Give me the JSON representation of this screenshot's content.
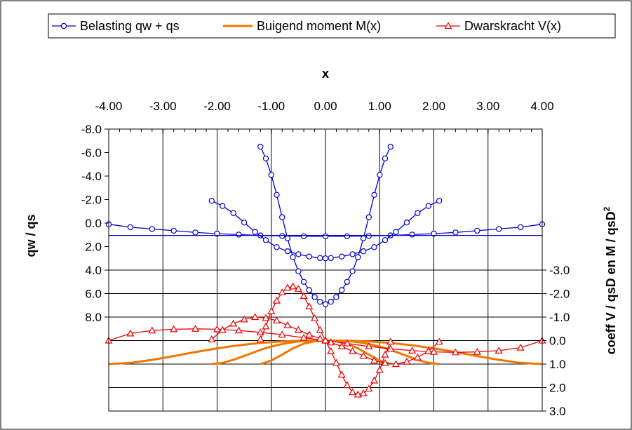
{
  "chart_data": {
    "type": "line",
    "x_axis": {
      "label": "x",
      "position": "top",
      "range": [
        -4,
        4
      ],
      "ticks": [
        "-4.00",
        "-3.00",
        "-2.00",
        "-1.00",
        "0.00",
        "1.00",
        "2.00",
        "3.00",
        "4.00"
      ]
    },
    "y_left": {
      "label": "qw / qs",
      "reversed": true,
      "range": [
        -8,
        8
      ],
      "ticks": [
        "-8.0",
        "-6.0",
        "-4.0",
        "-2.0",
        "0.0",
        "2.0",
        "4.0",
        "6.0",
        "8.0"
      ]
    },
    "y_right": {
      "label": "coeff V / qsD en M /  qsD",
      "label_superscript": "2",
      "range": [
        -3,
        3
      ],
      "ticks": [
        "-3.0",
        "-2.0",
        "-1.0",
        "0.0",
        "1.0",
        "2.0",
        "3.0"
      ]
    },
    "legend": {
      "placement": "top",
      "entries": [
        "Belasting qw + qs",
        "Buigend moment M(x)",
        "Dwarskracht V(x)"
      ]
    },
    "grid": true,
    "colors": {
      "belasting": "#0000cc",
      "moment": "#ee7700",
      "dwarskracht": "#ee0000"
    },
    "series": [
      {
        "key": "belasting",
        "curves": [
          {
            "x": [
              -4.0,
              -3.6,
              -3.2,
              -2.8,
              -2.4,
              -2.0,
              -1.6,
              -1.2,
              -0.8,
              -0.4,
              0.0,
              0.4,
              0.8,
              1.2,
              1.6,
              2.0,
              2.4,
              2.8,
              3.2,
              3.6,
              4.0
            ],
            "y": [
              0.1,
              0.35,
              0.5,
              0.65,
              0.8,
              0.9,
              0.98,
              1.05,
              1.1,
              1.12,
              1.13,
              1.12,
              1.1,
              1.05,
              0.98,
              0.9,
              0.8,
              0.65,
              0.5,
              0.35,
              0.1
            ]
          },
          {
            "x": [
              -2.1,
              -1.9,
              -1.7,
              -1.5,
              -1.3,
              -1.1,
              -0.9,
              -0.7,
              -0.5,
              -0.3,
              -0.1,
              0.0,
              0.1,
              0.3,
              0.5,
              0.7,
              0.9,
              1.1,
              1.3,
              1.5,
              1.7,
              1.9,
              2.1
            ],
            "y": [
              -1.9,
              -1.45,
              -0.85,
              -0.05,
              0.75,
              1.45,
              2.05,
              2.4,
              2.65,
              2.85,
              2.97,
              3.0,
              2.97,
              2.85,
              2.65,
              2.4,
              2.05,
              1.45,
              0.75,
              -0.05,
              -0.85,
              -1.45,
              -1.9
            ]
          },
          {
            "x": [
              -1.2,
              -1.1,
              -1.0,
              -0.9,
              -0.8,
              -0.7,
              -0.6,
              -0.5,
              -0.4,
              -0.3,
              -0.2,
              -0.1,
              0.0,
              0.1,
              0.2,
              0.3,
              0.4,
              0.5,
              0.6,
              0.7,
              0.8,
              0.9,
              1.0,
              1.1,
              1.2
            ],
            "y": [
              -6.5,
              -5.5,
              -4.1,
              -2.4,
              -0.5,
              1.3,
              2.9,
              4.1,
              5.0,
              5.7,
              6.3,
              6.7,
              6.9,
              6.7,
              6.3,
              5.7,
              5.0,
              4.1,
              2.9,
              1.3,
              -0.5,
              -2.4,
              -4.1,
              -5.5,
              -6.5
            ]
          },
          {
            "x": [
              -4.0,
              4.0
            ],
            "y": [
              1.05,
              1.05
            ]
          }
        ]
      },
      {
        "key": "moment",
        "curves": [
          {
            "x": [
              -4.0,
              -3.6,
              -3.2,
              -2.8,
              -2.4,
              -2.0,
              -1.6,
              -1.2,
              -0.8,
              -0.4,
              0.0,
              0.4,
              0.8,
              1.2,
              1.6,
              2.0,
              2.4,
              2.8,
              3.2,
              3.6,
              4.0
            ],
            "y": [
              1.0,
              0.95,
              0.82,
              0.66,
              0.49,
              0.33,
              0.2,
              0.1,
              0.04,
              0.01,
              0.0,
              0.01,
              0.04,
              0.1,
              0.2,
              0.33,
              0.49,
              0.66,
              0.82,
              0.95,
              1.0
            ]
          },
          {
            "x": [
              -2.1,
              -1.9,
              -1.7,
              -1.5,
              -1.3,
              -1.1,
              -0.9,
              -0.7,
              -0.5,
              -0.3,
              -0.1,
              0.0,
              0.1,
              0.3,
              0.5,
              0.7,
              0.9,
              1.1,
              1.3,
              1.5,
              1.7,
              1.9,
              2.1
            ],
            "y": [
              1.0,
              0.95,
              0.82,
              0.65,
              0.48,
              0.32,
              0.2,
              0.1,
              0.04,
              0.01,
              0.0,
              0.0,
              0.0,
              0.01,
              0.04,
              0.1,
              0.2,
              0.32,
              0.48,
              0.65,
              0.82,
              0.95,
              1.0
            ]
          },
          {
            "x": [
              -1.2,
              -1.0,
              -0.8,
              -0.6,
              -0.4,
              -0.2,
              0.0,
              0.2,
              0.4,
              0.6,
              0.8,
              1.0,
              1.2
            ],
            "y": [
              1.0,
              0.85,
              0.6,
              0.33,
              0.13,
              0.03,
              0.0,
              0.03,
              0.13,
              0.33,
              0.6,
              0.85,
              1.0
            ]
          }
        ]
      },
      {
        "key": "dwarskracht",
        "curves": [
          {
            "x": [
              -4.0,
              -3.6,
              -3.2,
              -2.8,
              -2.4,
              -2.0,
              -1.6,
              -1.2,
              -0.8,
              -0.4,
              0.0,
              0.4,
              0.8,
              1.2,
              1.6,
              2.0,
              2.4,
              2.8,
              3.2,
              3.6,
              4.0
            ],
            "y": [
              0.0,
              -0.3,
              -0.43,
              -0.48,
              -0.5,
              -0.48,
              -0.43,
              -0.35,
              -0.25,
              -0.12,
              0.0,
              0.12,
              0.25,
              0.35,
              0.43,
              0.48,
              0.5,
              0.48,
              0.43,
              0.3,
              0.0
            ]
          },
          {
            "x": [
              -2.1,
              -1.9,
              -1.7,
              -1.5,
              -1.3,
              -1.1,
              -0.9,
              -0.7,
              -0.5,
              -0.3,
              -0.1,
              0.0,
              0.1,
              0.3,
              0.5,
              0.7,
              0.9,
              1.1,
              1.3,
              1.5,
              1.7,
              1.9,
              2.1
            ],
            "y": [
              -0.05,
              -0.45,
              -0.72,
              -0.9,
              -1.0,
              -0.96,
              -0.85,
              -0.65,
              -0.45,
              -0.25,
              -0.08,
              0.0,
              0.08,
              0.25,
              0.45,
              0.65,
              0.85,
              0.96,
              1.0,
              0.9,
              0.72,
              0.45,
              0.05
            ]
          },
          {
            "x": [
              -1.2,
              -1.1,
              -1.0,
              -0.9,
              -0.8,
              -0.7,
              -0.6,
              -0.5,
              -0.4,
              -0.3,
              -0.2,
              -0.1,
              0.0,
              0.1,
              0.2,
              0.3,
              0.4,
              0.5,
              0.6,
              0.7,
              0.8,
              0.9,
              1.0,
              1.1,
              1.2
            ],
            "y": [
              -0.05,
              -0.6,
              -1.25,
              -1.7,
              -2.05,
              -2.25,
              -2.3,
              -2.2,
              -1.9,
              -1.45,
              -0.95,
              -0.45,
              0.0,
              0.45,
              0.95,
              1.45,
              1.9,
              2.2,
              2.3,
              2.25,
              2.05,
              1.7,
              1.25,
              0.6,
              0.05
            ]
          }
        ]
      }
    ]
  }
}
